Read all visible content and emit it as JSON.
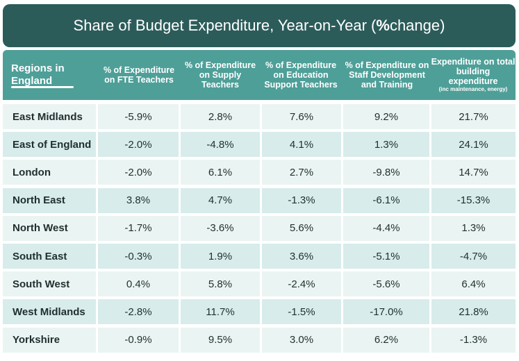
{
  "title": {
    "prefix": "Share of Budget Expenditure, Year-on-Year (",
    "bold": "%",
    "suffix": " change)"
  },
  "headers": {
    "region": "Regions in England",
    "col1": "% of Expenditure on FTE Teachers",
    "col2": "% of Expenditure on Supply Teachers",
    "col3": "% of Expenditure on Education Support Teachers",
    "col4": "% of Expenditure on Staff Development and Training",
    "col5": "Expenditure on total building expenditure",
    "col5_note": "(inc maintenance, energy)"
  },
  "rows": [
    {
      "region": "East Midlands",
      "c1": "-5.9%",
      "c2": "2.8%",
      "c3": "7.6%",
      "c4": "9.2%",
      "c5": "21.7%"
    },
    {
      "region": "East of England",
      "c1": "-2.0%",
      "c2": "-4.8%",
      "c3": "4.1%",
      "c4": "1.3%",
      "c5": "24.1%"
    },
    {
      "region": "London",
      "c1": "-2.0%",
      "c2": "6.1%",
      "c3": "2.7%",
      "c4": "-9.8%",
      "c5": "14.7%"
    },
    {
      "region": "North East",
      "c1": "3.8%",
      "c2": "4.7%",
      "c3": "-1.3%",
      "c4": "-6.1%",
      "c5": "-15.3%"
    },
    {
      "region": "North West",
      "c1": "-1.7%",
      "c2": "-3.6%",
      "c3": "5.6%",
      "c4": "-4.4%",
      "c5": "1.3%"
    },
    {
      "region": "South East",
      "c1": "-0.3%",
      "c2": "1.9%",
      "c3": "3.6%",
      "c4": "-5.1%",
      "c5": "-4.7%"
    },
    {
      "region": "South West",
      "c1": "0.4%",
      "c2": "5.8%",
      "c3": "-2.4%",
      "c4": "-5.6%",
      "c5": "6.4%"
    },
    {
      "region": "West Midlands",
      "c1": "-2.8%",
      "c2": "11.7%",
      "c3": "-1.5%",
      "c4": "-17.0%",
      "c5": "21.8%"
    },
    {
      "region": "Yorkshire",
      "c1": "-0.9%",
      "c2": "9.5%",
      "c3": "3.0%",
      "c4": "6.2%",
      "c5": "-1.3%"
    }
  ],
  "chart_data": {
    "type": "table",
    "title": "Share of Budget Expenditure, Year-on-Year (% change)",
    "columns": [
      "Regions in England",
      "% of Expenditure on FTE Teachers",
      "% of Expenditure on Supply Teachers",
      "% of Expenditure on Education Support Teachers",
      "% of Expenditure on Staff Development and Training",
      "Expenditure on total building expenditure (inc maintenance, energy)"
    ],
    "categories": [
      "East Midlands",
      "East of England",
      "London",
      "North East",
      "North West",
      "South East",
      "South West",
      "West Midlands",
      "Yorkshire"
    ],
    "series": [
      {
        "name": "% of Expenditure on FTE Teachers",
        "values": [
          -5.9,
          -2.0,
          -2.0,
          3.8,
          -1.7,
          -0.3,
          0.4,
          -2.8,
          -0.9
        ]
      },
      {
        "name": "% of Expenditure on Supply Teachers",
        "values": [
          2.8,
          -4.8,
          6.1,
          4.7,
          -3.6,
          1.9,
          5.8,
          11.7,
          9.5
        ]
      },
      {
        "name": "% of Expenditure on Education Support Teachers",
        "values": [
          7.6,
          4.1,
          2.7,
          -1.3,
          5.6,
          3.6,
          -2.4,
          -1.5,
          3.0
        ]
      },
      {
        "name": "% of Expenditure on Staff Development and Training",
        "values": [
          9.2,
          1.3,
          -9.8,
          -6.1,
          -4.4,
          -5.1,
          -5.6,
          -17.0,
          6.2
        ]
      },
      {
        "name": "Expenditure on total building expenditure (inc maintenance, energy)",
        "values": [
          21.7,
          24.1,
          14.7,
          -15.3,
          1.3,
          -4.7,
          6.4,
          21.8,
          -1.3
        ]
      }
    ]
  }
}
